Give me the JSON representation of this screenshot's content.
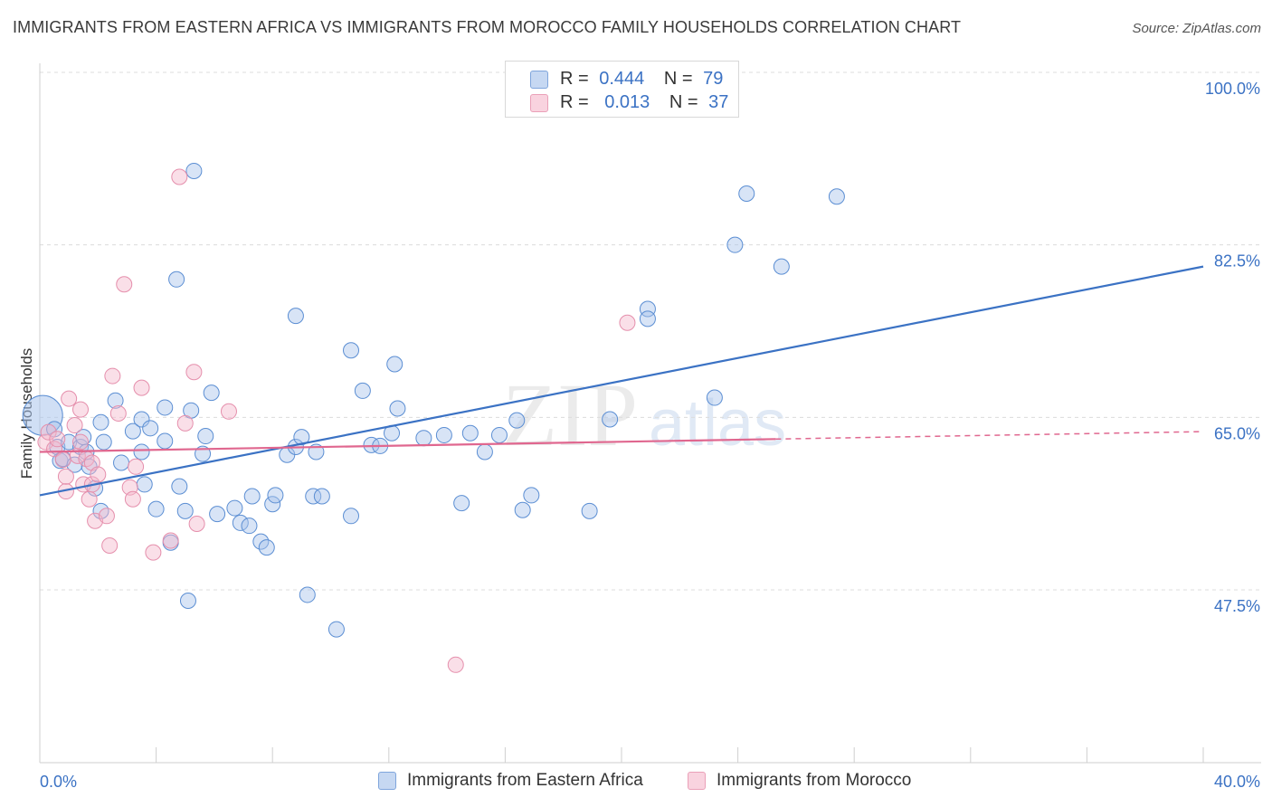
{
  "header": {
    "title": "IMMIGRANTS FROM EASTERN AFRICA VS IMMIGRANTS FROM MOROCCO FAMILY HOUSEHOLDS CORRELATION CHART",
    "source": "Source: ZipAtlas.com"
  },
  "legend_top": {
    "rows": [
      {
        "r_label": "R =",
        "r_value": "0.444",
        "n_label": "N =",
        "n_value": "79",
        "color": "#a9c4ec"
      },
      {
        "r_label": "R =",
        "r_value": "0.013",
        "n_label": "N =",
        "n_value": "37",
        "color": "#f4b8cb"
      }
    ]
  },
  "bottom_legend": [
    {
      "label": "Immigrants from Eastern Africa",
      "color": "#a9c4ec"
    },
    {
      "label": "Immigrants from Morocco",
      "color": "#f4b8cb"
    }
  ],
  "watermark": {
    "zip": "ZIP",
    "atlas": "atlas"
  },
  "chart_data": {
    "type": "scatter",
    "title": "IMMIGRANTS FROM EASTERN AFRICA VS IMMIGRANTS FROM MOROCCO FAMILY HOUSEHOLDS CORRELATION CHART",
    "xlabel": "",
    "ylabel": "Family Households",
    "xlim": [
      0,
      40
    ],
    "ylim": [
      29,
      102
    ],
    "x_tick_labels": [
      "0.0%",
      "40.0%"
    ],
    "y_ticks": [
      47.5,
      65.0,
      82.5,
      100.0
    ],
    "y_tick_labels": [
      "47.5%",
      "65.0%",
      "82.5%",
      "100.0%"
    ],
    "grid": true,
    "colors": {
      "blue": "#3b72c4",
      "blue_fill": "#a9c4ec",
      "pink": "#e0678f",
      "pink_fill": "#f4b8cb"
    },
    "series": [
      {
        "name": "Immigrants from Eastern Africa",
        "color": "#3b72c4",
        "trend": {
          "x": [
            0,
            40
          ],
          "y": [
            57.1,
            80.3
          ]
        },
        "points": [
          [
            0.1,
            65.2
          ],
          [
            0.5,
            63.8
          ],
          [
            0.6,
            62.0
          ],
          [
            0.7,
            60.6
          ],
          [
            0.8,
            60.8
          ],
          [
            1.0,
            62.5
          ],
          [
            1.2,
            60.2
          ],
          [
            1.4,
            62.0
          ],
          [
            1.5,
            63.0
          ],
          [
            1.6,
            61.5
          ],
          [
            1.7,
            60.0
          ],
          [
            1.9,
            57.8
          ],
          [
            2.1,
            55.5
          ],
          [
            2.2,
            62.5
          ],
          [
            2.1,
            64.5
          ],
          [
            2.6,
            66.7
          ],
          [
            2.8,
            60.4
          ],
          [
            3.2,
            63.6
          ],
          [
            3.5,
            64.8
          ],
          [
            3.5,
            61.5
          ],
          [
            3.6,
            58.2
          ],
          [
            3.8,
            63.9
          ],
          [
            4.0,
            55.7
          ],
          [
            4.3,
            62.6
          ],
          [
            4.3,
            66.0
          ],
          [
            4.5,
            52.3
          ],
          [
            4.7,
            79.0
          ],
          [
            4.8,
            58.0
          ],
          [
            5.0,
            55.5
          ],
          [
            5.1,
            46.4
          ],
          [
            5.2,
            65.7
          ],
          [
            5.3,
            90.0
          ],
          [
            5.6,
            61.3
          ],
          [
            5.7,
            63.1
          ],
          [
            5.9,
            67.5
          ],
          [
            6.1,
            55.2
          ],
          [
            6.7,
            55.8
          ],
          [
            6.9,
            54.3
          ],
          [
            7.2,
            54.0
          ],
          [
            7.3,
            57.0
          ],
          [
            7.6,
            52.4
          ],
          [
            7.8,
            51.8
          ],
          [
            8.0,
            56.2
          ],
          [
            8.1,
            57.1
          ],
          [
            8.5,
            61.2
          ],
          [
            8.8,
            75.3
          ],
          [
            8.8,
            62.0
          ],
          [
            9.0,
            63.0
          ],
          [
            9.4,
            57.0
          ],
          [
            9.2,
            47.0
          ],
          [
            9.5,
            61.5
          ],
          [
            9.7,
            57.0
          ],
          [
            10.2,
            43.5
          ],
          [
            10.7,
            71.8
          ],
          [
            10.7,
            55.0
          ],
          [
            11.1,
            67.7
          ],
          [
            11.4,
            62.2
          ],
          [
            11.7,
            62.1
          ],
          [
            12.1,
            63.4
          ],
          [
            12.2,
            70.4
          ],
          [
            12.3,
            65.9
          ],
          [
            13.2,
            62.9
          ],
          [
            13.9,
            63.2
          ],
          [
            14.5,
            56.3
          ],
          [
            14.8,
            63.4
          ],
          [
            15.3,
            61.5
          ],
          [
            15.8,
            63.2
          ],
          [
            16.4,
            64.7
          ],
          [
            16.9,
            57.1
          ],
          [
            16.6,
            55.6
          ],
          [
            18.9,
            55.5
          ],
          [
            19.6,
            64.8
          ],
          [
            20.9,
            76.0
          ],
          [
            20.9,
            75.0
          ],
          [
            23.2,
            67.0
          ],
          [
            23.9,
            82.5
          ],
          [
            24.3,
            87.7
          ],
          [
            25.5,
            80.3
          ],
          [
            27.4,
            87.4
          ]
        ]
      },
      {
        "name": "Immigrants from Morocco",
        "color": "#e0678f",
        "trend": {
          "x": [
            0,
            25.3
          ],
          "y": [
            61.5,
            62.8
          ]
        },
        "points": [
          [
            0.2,
            62.5
          ],
          [
            0.3,
            63.5
          ],
          [
            0.5,
            61.8
          ],
          [
            0.6,
            62.8
          ],
          [
            0.8,
            60.7
          ],
          [
            0.9,
            57.5
          ],
          [
            0.9,
            59.0
          ],
          [
            1.0,
            66.9
          ],
          [
            1.2,
            64.2
          ],
          [
            1.3,
            61.1
          ],
          [
            1.4,
            62.5
          ],
          [
            1.4,
            65.8
          ],
          [
            1.5,
            58.2
          ],
          [
            1.6,
            60.8
          ],
          [
            1.7,
            56.7
          ],
          [
            1.8,
            60.4
          ],
          [
            1.8,
            58.2
          ],
          [
            1.9,
            54.5
          ],
          [
            2.0,
            59.2
          ],
          [
            2.3,
            55.0
          ],
          [
            2.4,
            52.0
          ],
          [
            2.5,
            69.2
          ],
          [
            2.7,
            65.4
          ],
          [
            2.9,
            78.5
          ],
          [
            3.1,
            57.9
          ],
          [
            3.2,
            56.7
          ],
          [
            3.3,
            60.0
          ],
          [
            3.5,
            68.0
          ],
          [
            3.9,
            51.3
          ],
          [
            4.5,
            52.5
          ],
          [
            4.8,
            89.4
          ],
          [
            5.0,
            64.4
          ],
          [
            5.3,
            69.6
          ],
          [
            5.4,
            54.2
          ],
          [
            6.5,
            65.6
          ],
          [
            14.3,
            39.9
          ],
          [
            20.2,
            74.6
          ]
        ]
      }
    ]
  }
}
